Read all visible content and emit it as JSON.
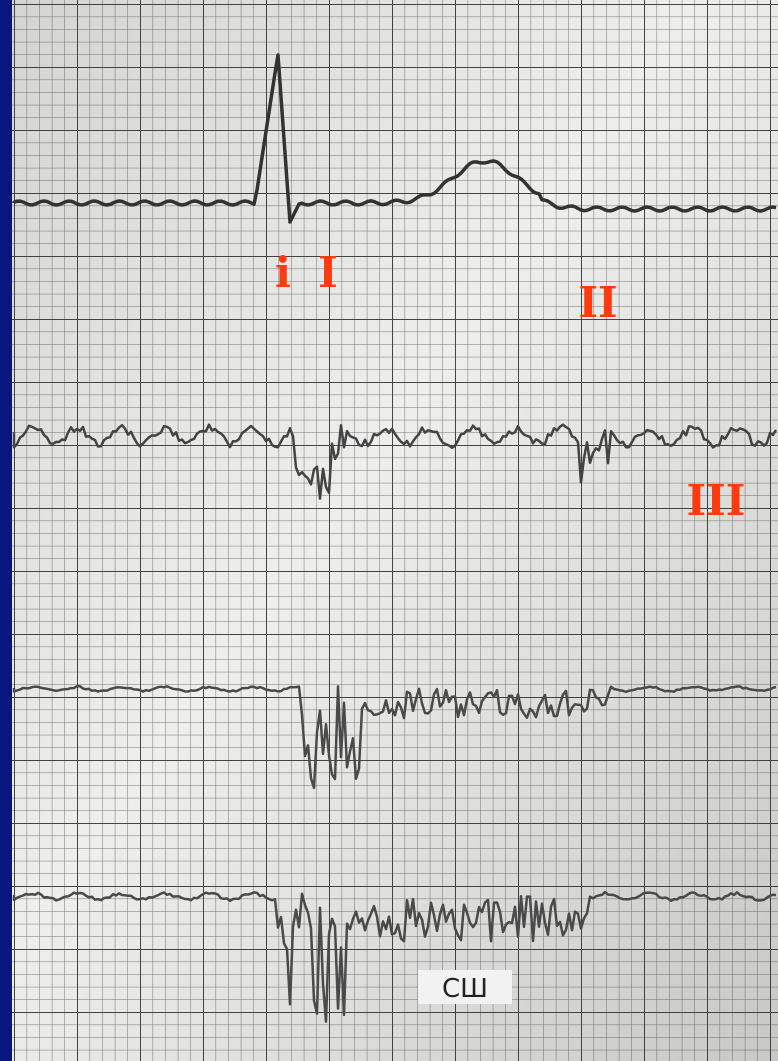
{
  "labels": [
    "i",
    "I",
    "II",
    "III"
  ],
  "caption": "СШ"
}
